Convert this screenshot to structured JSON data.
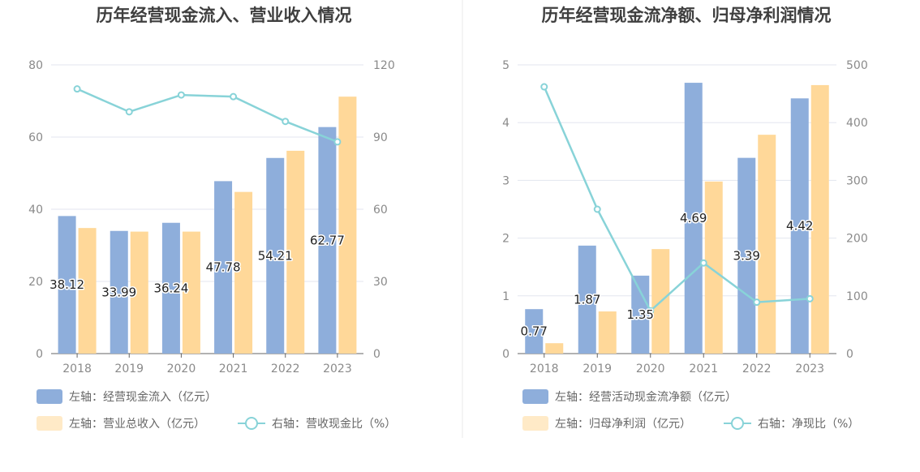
{
  "colors": {
    "bar_left": "#8eaedb",
    "bar_right": "#ffd899",
    "line": "#88d3d8",
    "grid": "#e3e6ef",
    "axis": "#666666",
    "divider": "#e8e8e8"
  },
  "chart_data": [
    {
      "type": "bar+line",
      "title": "历年经营现金流入、营业收入情况",
      "categories": [
        "2018",
        "2019",
        "2020",
        "2021",
        "2022",
        "2023"
      ],
      "left_axis": {
        "ylim": [
          0,
          80
        ],
        "ticks": [
          "0",
          "20",
          "40",
          "60",
          "80"
        ]
      },
      "right_axis": {
        "ylim": [
          0,
          120
        ],
        "ticks": [
          "0",
          "30",
          "60",
          "90",
          "120"
        ]
      },
      "series": [
        {
          "name": "左轴：经营现金流入（亿元）",
          "kind": "bar",
          "axis": "left",
          "color": "#8eaedb",
          "values": [
            38.12,
            33.99,
            36.24,
            47.78,
            54.21,
            62.77
          ],
          "labels": [
            "38.12",
            "33.99",
            "36.24",
            "47.78",
            "54.21",
            "62.77"
          ]
        },
        {
          "name": "左轴：营业总收入（亿元）",
          "kind": "bar",
          "axis": "left",
          "color": "#ffd899",
          "values": [
            34.8,
            33.8,
            33.8,
            44.8,
            56.2,
            71.2
          ]
        },
        {
          "name": "右轴：营收现金比（%）",
          "kind": "line",
          "axis": "right",
          "color": "#88d3d8",
          "values": [
            110.0,
            100.5,
            107.5,
            106.8,
            96.5,
            88.0
          ]
        }
      ],
      "legend_position": "bottom-left",
      "grid": true
    },
    {
      "type": "bar+line",
      "title": "历年经营现金流净额、归母净利润情况",
      "categories": [
        "2018",
        "2019",
        "2020",
        "2021",
        "2022",
        "2023"
      ],
      "left_axis": {
        "ylim": [
          0,
          5
        ],
        "ticks": [
          "0",
          "1",
          "2",
          "3",
          "4",
          "5"
        ]
      },
      "right_axis": {
        "ylim": [
          0,
          500
        ],
        "ticks": [
          "0",
          "100",
          "200",
          "300",
          "400",
          "500"
        ]
      },
      "series": [
        {
          "name": "左轴：经营活动现金流净额（亿元）",
          "kind": "bar",
          "axis": "left",
          "color": "#8eaedb",
          "values": [
            0.77,
            1.87,
            1.35,
            4.69,
            3.39,
            4.42
          ],
          "labels": [
            "0.77",
            "1.87",
            "1.35",
            "4.69",
            "3.39",
            "4.42"
          ]
        },
        {
          "name": "左轴：归母净利润（亿元）",
          "kind": "bar",
          "axis": "left",
          "color": "#ffd899",
          "values": [
            0.18,
            0.73,
            1.81,
            2.98,
            3.79,
            4.65
          ]
        },
        {
          "name": "右轴：净现比（%）",
          "kind": "line",
          "axis": "right",
          "color": "#88d3d8",
          "values": [
            462,
            250,
            74,
            157,
            89,
            95
          ]
        }
      ],
      "legend_position": "bottom-left",
      "grid": true
    }
  ]
}
